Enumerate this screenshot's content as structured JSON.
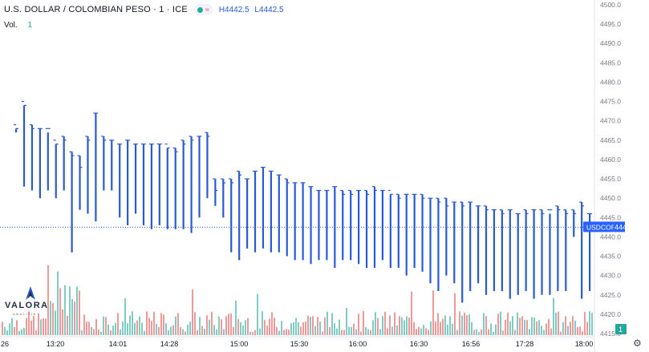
{
  "header": {
    "title": "U.S. DOLLAR / COLOMBIAN PESO · 1 · ICE",
    "high": "H4442.5",
    "low": "L4442.5",
    "wave_icon": "≈"
  },
  "volume": {
    "label": "Vol.",
    "value": "1"
  },
  "logo": {
    "word": "VALORA",
    "sub": "ANALITIK"
  },
  "colors": {
    "bars": "#2a5ad3",
    "vol_up": "#80cbc4",
    "vol_down": "#ef9a9a",
    "price_tag": "#2962ff",
    "vol_tag": "#26a69a"
  },
  "chart_data": {
    "type": "ohlc",
    "symbol": "USDCOP",
    "last_price": "4442.5",
    "last_volume": "1",
    "x_ticks": [
      "26",
      "13:20",
      "14:01",
      "14:28",
      "15:00",
      "15:30",
      "16:00",
      "16:30",
      "16:56",
      "17:28",
      "18:00"
    ],
    "y_ticks": [
      "4500.0",
      "4495.0",
      "4490.0",
      "4485.0",
      "4480.0",
      "4475.0",
      "4470.0",
      "4465.0",
      "4460.0",
      "4455.0",
      "4450.0",
      "4445.0",
      "4440.0",
      "4435.0",
      "4430.0",
      "4425.0",
      "4420.0",
      "4415.0"
    ],
    "ylim": [
      4415,
      4500
    ],
    "bars": [
      [
        4469,
        4468,
        4467,
        4468
      ],
      [
        4475,
        4474,
        4453,
        4474
      ],
      [
        4469,
        4469,
        4452,
        4468
      ],
      [
        4468,
        4468,
        4450,
        4468
      ],
      [
        4468,
        4467,
        4452,
        4468
      ],
      [
        4465,
        4464,
        4450,
        4464
      ],
      [
        4466,
        4466,
        4452,
        4465
      ],
      [
        4462,
        4462,
        4436,
        4461
      ],
      [
        4461,
        4461,
        4447,
        4458
      ],
      [
        4466,
        4466,
        4446,
        4465
      ],
      [
        4472,
        4472,
        4444,
        4472
      ],
      [
        4466,
        4466,
        4452,
        4465
      ],
      [
        4465,
        4465,
        4452,
        4465
      ],
      [
        4464,
        4464,
        4445,
        4464
      ],
      [
        4465,
        4465,
        4443,
        4465
      ],
      [
        4464,
        4464,
        4446,
        4464
      ],
      [
        4464,
        4464,
        4443,
        4464
      ],
      [
        4464,
        4464,
        4442,
        4464
      ],
      [
        4464,
        4464,
        4443,
        4464
      ],
      [
        4464,
        4463,
        4442,
        4463
      ],
      [
        4463,
        4463,
        4442,
        4462
      ],
      [
        4465,
        4465,
        4442,
        4464
      ],
      [
        4466,
        4466,
        4441,
        4465
      ],
      [
        4466,
        4466,
        4445,
        4466
      ],
      [
        4467,
        4467,
        4450,
        4466
      ],
      [
        4455,
        4455,
        4448,
        4452
      ],
      [
        4455,
        4455,
        4445,
        4454
      ],
      [
        4455,
        4455,
        4436,
        4454
      ],
      [
        4457,
        4457,
        4434,
        4456
      ],
      [
        4455,
        4455,
        4437,
        4455
      ],
      [
        4457,
        4457,
        4436,
        4457
      ],
      [
        4458,
        4458,
        4437,
        4458
      ],
      [
        4457,
        4457,
        4436,
        4457
      ],
      [
        4456,
        4456,
        4436,
        4456
      ],
      [
        4455,
        4455,
        4435,
        4454
      ],
      [
        4454,
        4454,
        4434,
        4454
      ],
      [
        4454,
        4454,
        4434,
        4454
      ],
      [
        4453,
        4453,
        4433,
        4453
      ],
      [
        4452,
        4452,
        4434,
        4452
      ],
      [
        4452,
        4452,
        4434,
        4452
      ],
      [
        4453,
        4453,
        4432,
        4453
      ],
      [
        4452,
        4452,
        4434,
        4451
      ],
      [
        4452,
        4452,
        4434,
        4451
      ],
      [
        4452,
        4452,
        4433,
        4452
      ],
      [
        4452,
        4452,
        4432,
        4451
      ],
      [
        4453,
        4453,
        4432,
        4452
      ],
      [
        4452,
        4452,
        4434,
        4452
      ],
      [
        4452,
        4451,
        4432,
        4451
      ],
      [
        4451,
        4451,
        4432,
        4450
      ],
      [
        4451,
        4451,
        4430,
        4451
      ],
      [
        4451,
        4451,
        4432,
        4451
      ],
      [
        4451,
        4451,
        4431,
        4450
      ],
      [
        4450,
        4450,
        4428,
        4450
      ],
      [
        4450,
        4450,
        4426,
        4449
      ],
      [
        4450,
        4450,
        4430,
        4448
      ],
      [
        4449,
        4449,
        4428,
        4449
      ],
      [
        4449,
        4449,
        4423,
        4448
      ],
      [
        4449,
        4449,
        4426,
        4449
      ],
      [
        4448,
        4448,
        4428,
        4448
      ],
      [
        4448,
        4448,
        4425,
        4447
      ],
      [
        4447,
        4447,
        4426,
        4447
      ],
      [
        4447,
        4447,
        4426,
        4446
      ],
      [
        4447,
        4447,
        4424,
        4447
      ],
      [
        4446,
        4446,
        4425,
        4446
      ],
      [
        4447,
        4447,
        4426,
        4446
      ],
      [
        4447,
        4447,
        4424,
        4447
      ],
      [
        4447,
        4447,
        4425,
        4446
      ],
      [
        4447,
        4446,
        4425,
        4447
      ],
      [
        4448,
        4448,
        4426,
        4447
      ],
      [
        4447,
        4447,
        4426,
        4446
      ],
      [
        4447,
        4447,
        4440,
        4446
      ],
      [
        4449,
        4449,
        4424,
        4448
      ],
      [
        4446,
        4446,
        4426,
        4446
      ]
    ]
  }
}
